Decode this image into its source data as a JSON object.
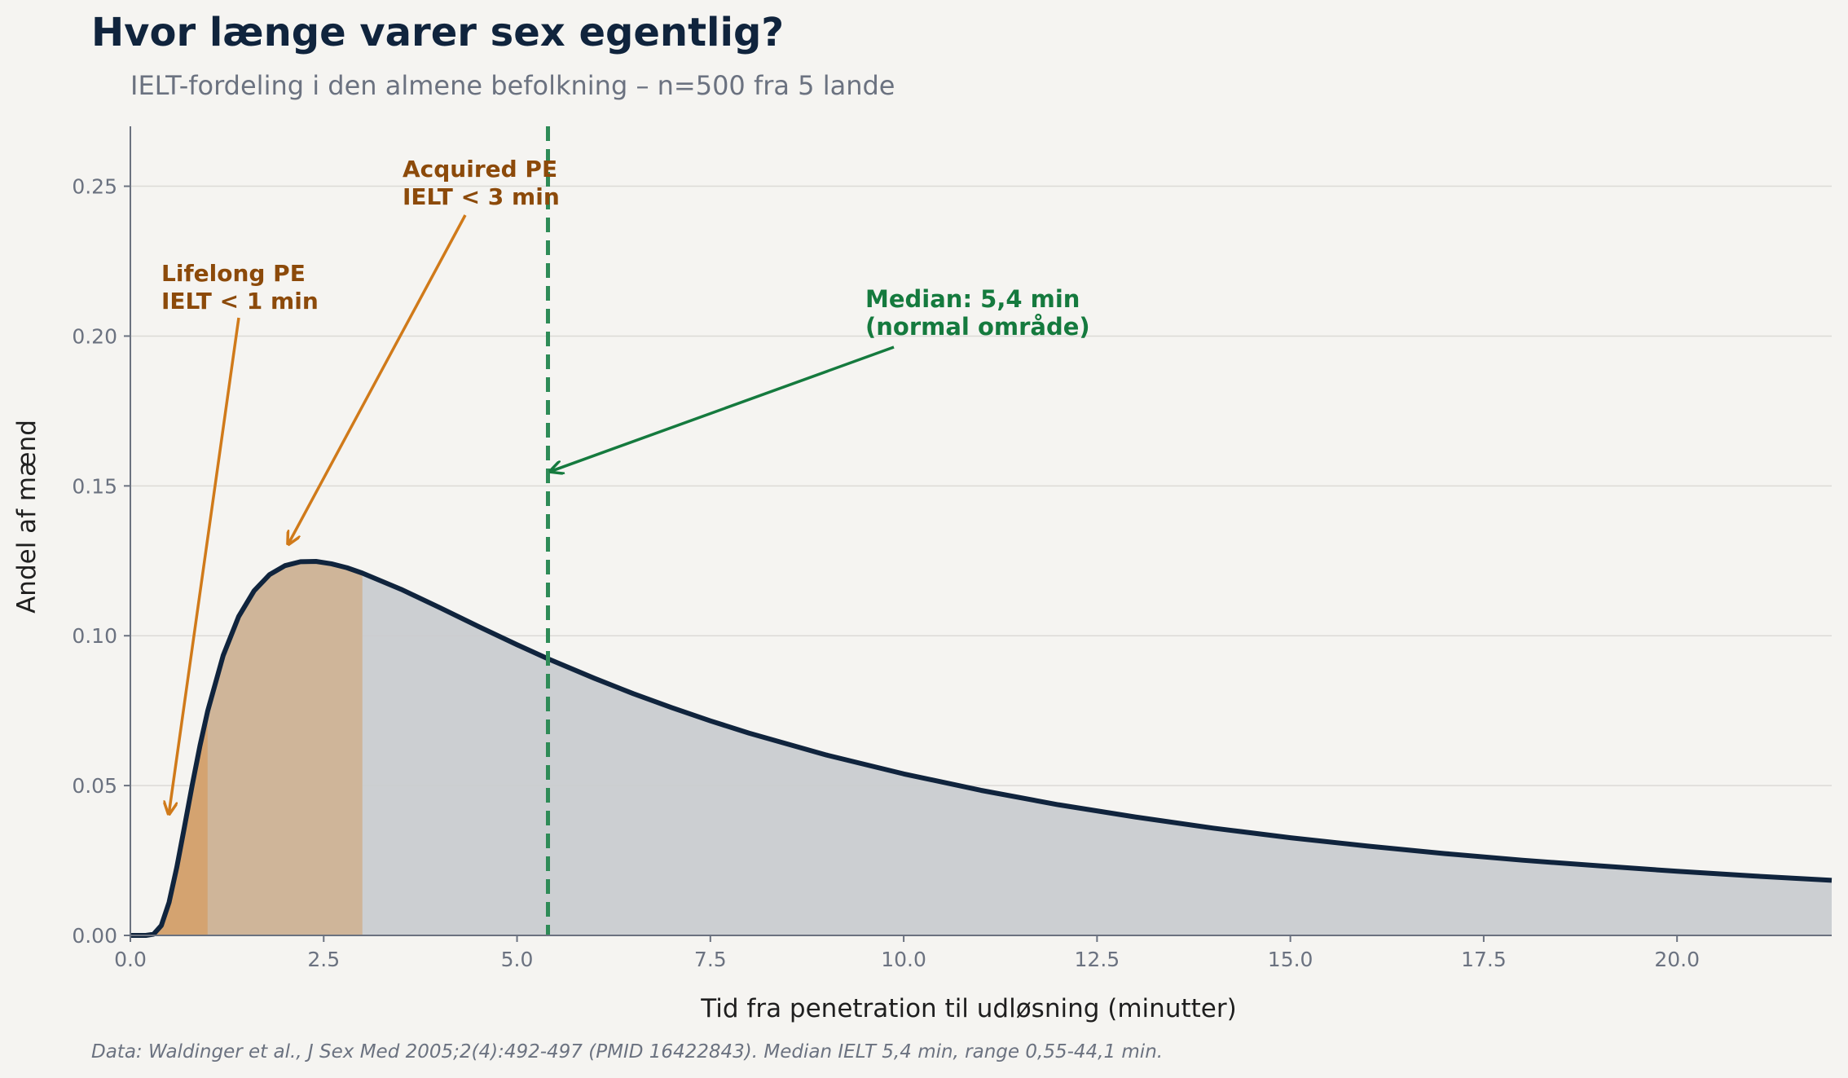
{
  "title": "Hvor længe varer sex egentlig?",
  "subtitle": "IELT-fordeling i den almene befolkning – n=500 fra 5 lande",
  "footer": "Data: Waldinger et al., J Sex Med 2005;2(4):492-497 (PMID 16422843). Median IELT 5,4 min, range 0,55-44,1 min.",
  "colors": {
    "curve": "#10243d",
    "fill_main": "#c9ccd0",
    "fill_lifelong": "#d4a06a",
    "fill_acquired": "#cfb396",
    "median_line": "#2e8b57",
    "annotation_orange": "#d07a1a",
    "annotation_orange_text": "#8c4a0a",
    "annotation_green": "#157a3e",
    "grid": "#dcdad6",
    "axis": "#6b7280"
  },
  "chart_data": {
    "type": "area",
    "xlabel": "Tid fra penetration til udløsning (minutter)",
    "ylabel": "Andel af mænd",
    "xlim": [
      0,
      22
    ],
    "ylim": [
      0,
      0.27
    ],
    "grid": "y",
    "x_ticks": [
      0,
      2.5,
      5,
      7.5,
      10,
      12.5,
      15,
      17.5,
      20
    ],
    "x_tick_labels": [
      "0.0",
      "2.5",
      "5.0",
      "7.5",
      "10.0",
      "12.5",
      "15.0",
      "17.5",
      "20.0"
    ],
    "y_ticks": [
      0,
      0.05,
      0.1,
      0.15,
      0.2,
      0.25
    ],
    "y_tick_labels": [
      "0.00",
      "0.05",
      "0.10",
      "0.15",
      "0.20",
      "0.25"
    ],
    "distribution": "lognormal",
    "median": 5.4,
    "x": [
      0,
      0.1,
      0.2,
      0.3,
      0.4,
      0.5,
      0.6,
      0.7,
      0.8,
      0.9,
      1.0,
      1.2,
      1.4,
      1.6,
      1.8,
      2.0,
      2.2,
      2.4,
      2.6,
      2.8,
      3.0,
      3.5,
      4.0,
      4.5,
      5.0,
      5.4,
      6.0,
      6.5,
      7.0,
      7.5,
      8.0,
      9.0,
      10.0,
      11.0,
      12.0,
      13.0,
      14.0,
      15.0,
      16.0,
      17.0,
      18.0,
      19.0,
      20.0,
      21.0,
      22.0
    ],
    "y": [
      0,
      0.0,
      0.0,
      0.0004,
      0.0033,
      0.011,
      0.0227,
      0.0363,
      0.0502,
      0.0633,
      0.0749,
      0.0934,
      0.1064,
      0.115,
      0.1204,
      0.1234,
      0.1247,
      0.1248,
      0.124,
      0.1227,
      0.1209,
      0.1155,
      0.1094,
      0.1031,
      0.097,
      0.0923,
      0.0858,
      0.0807,
      0.076,
      0.0716,
      0.0675,
      0.0602,
      0.0539,
      0.0484,
      0.0436,
      0.0395,
      0.0358,
      0.0326,
      0.0298,
      0.0273,
      0.0251,
      0.0232,
      0.0214,
      0.0198,
      0.0184
    ],
    "shaded_regions": [
      {
        "label": "Lifelong PE",
        "x_from": 0,
        "x_to": 1
      },
      {
        "label": "Acquired PE",
        "x_from": 1,
        "x_to": 3
      }
    ],
    "annotations": [
      {
        "line1": "Lifelong PE",
        "line2": "IELT < 1 min",
        "target_x": 0.5,
        "target_y": 0.041
      },
      {
        "line1": "Acquired PE",
        "line2": "IELT < 3 min",
        "target_x": 2.05,
        "target_y": 0.131
      },
      {
        "line1": "Median: 5,4 min",
        "line2": "(normal område)",
        "target_x": 5.45,
        "target_y": 0.155
      }
    ]
  }
}
